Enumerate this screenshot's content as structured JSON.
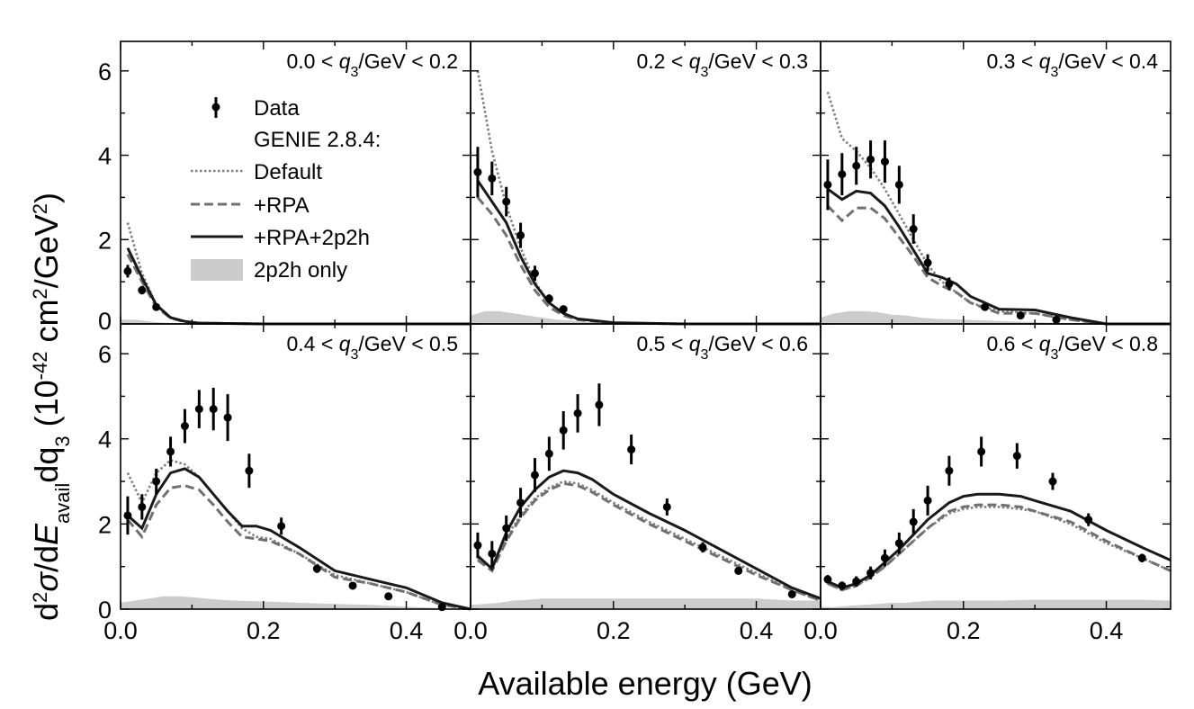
{
  "chart_data": {
    "type": "line",
    "xlabel": "Available energy (GeV)",
    "ylabel": {
      "main_prefix": "d",
      "sup1": "2",
      "sigma": "σ",
      "mid": "/d",
      "E": "E",
      "sub_avail": "avail",
      "dq": "dq",
      "sub_3": "3",
      "units_open": " (10",
      "units_exp": "-42",
      "units_mid": " cm",
      "units_sup2": "2",
      "units_end": "/GeV",
      "units_sup2b": "2",
      "units_close": ")"
    },
    "xlim": [
      0.0,
      0.49
    ],
    "ylim": [
      0,
      6.7
    ],
    "xticks": [
      0.0,
      0.2,
      0.4
    ],
    "xtick_labels": [
      "0.0",
      "0.2",
      "0.4"
    ],
    "yticks": [
      0,
      2,
      4,
      6
    ],
    "ytick_labels": [
      "0",
      "2",
      "4",
      "6"
    ],
    "legend": {
      "placement": "top-left panel",
      "data": "Data",
      "genie_header": "GENIE 2.8.4:",
      "default": "Default",
      "rpa": "+RPA",
      "rpa2p2h": "+RPA+2p2h",
      "only2p2h": "2p2h only"
    },
    "series_styles": {
      "default": "dotted gray",
      "rpa": "dashed gray",
      "rpa2p2h": "solid black",
      "only2p2h": "filled light gray"
    },
    "panels": [
      {
        "title": "0.0 < q3/GeV < 0.2",
        "t_lo": "0.0 < ",
        "t_q": "q",
        "t_sub": "3",
        "t_hi": "/GeV < 0.2",
        "data_x": [
          0.01,
          0.03,
          0.05
        ],
        "data_y": [
          1.25,
          0.8,
          0.4
        ],
        "data_err": [
          0.15,
          0.1,
          0.08
        ],
        "default_x": [
          0.01,
          0.03,
          0.05,
          0.07,
          0.09,
          0.11,
          0.15,
          0.2,
          0.3,
          0.49
        ],
        "default_y": [
          2.4,
          1.2,
          0.45,
          0.15,
          0.06,
          0.03,
          0.01,
          0.0,
          0.0,
          0.0
        ],
        "rpa_x": [
          0.01,
          0.03,
          0.05,
          0.07,
          0.09,
          0.11,
          0.15,
          0.2,
          0.3,
          0.49
        ],
        "rpa_y": [
          1.65,
          1.0,
          0.4,
          0.14,
          0.05,
          0.02,
          0.01,
          0.0,
          0.0,
          0.0
        ],
        "full_x": [
          0.01,
          0.03,
          0.05,
          0.07,
          0.09,
          0.11,
          0.15,
          0.2,
          0.3,
          0.49
        ],
        "full_y": [
          1.8,
          1.1,
          0.45,
          0.15,
          0.06,
          0.02,
          0.01,
          0.0,
          0.0,
          0.0
        ],
        "only_x": [
          0.0,
          0.02,
          0.04,
          0.06,
          0.08,
          0.1,
          0.49
        ],
        "only_y": [
          0.1,
          0.1,
          0.06,
          0.03,
          0.01,
          0.0,
          0.0
        ]
      },
      {
        "title": "0.2 < q3/GeV < 0.3",
        "t_lo": "0.2 < ",
        "t_q": "q",
        "t_sub": "3",
        "t_hi": "/GeV < 0.3",
        "data_x": [
          0.01,
          0.03,
          0.05,
          0.07,
          0.09,
          0.11,
          0.13
        ],
        "data_y": [
          3.6,
          3.45,
          2.9,
          2.1,
          1.2,
          0.6,
          0.35
        ],
        "data_err": [
          0.6,
          0.4,
          0.35,
          0.3,
          0.18,
          0.1,
          0.08
        ],
        "default_x": [
          0.01,
          0.03,
          0.05,
          0.07,
          0.09,
          0.11,
          0.13,
          0.15,
          0.2,
          0.3,
          0.49
        ],
        "default_y": [
          6.0,
          4.1,
          2.8,
          1.8,
          1.0,
          0.5,
          0.25,
          0.12,
          0.02,
          0.0,
          0.0
        ],
        "rpa_x": [
          0.01,
          0.03,
          0.05,
          0.07,
          0.09,
          0.11,
          0.13,
          0.15,
          0.2,
          0.3,
          0.49
        ],
        "rpa_y": [
          3.0,
          2.6,
          2.1,
          1.4,
          0.8,
          0.4,
          0.2,
          0.1,
          0.02,
          0.0,
          0.0
        ],
        "full_x": [
          0.01,
          0.03,
          0.05,
          0.07,
          0.09,
          0.11,
          0.13,
          0.15,
          0.2,
          0.3,
          0.49
        ],
        "full_y": [
          3.4,
          2.9,
          2.4,
          1.6,
          0.95,
          0.5,
          0.25,
          0.12,
          0.03,
          0.0,
          0.0
        ],
        "only_x": [
          0.0,
          0.02,
          0.04,
          0.06,
          0.08,
          0.1,
          0.12,
          0.14,
          0.16,
          0.18,
          0.2,
          0.22,
          0.49
        ],
        "only_y": [
          0.2,
          0.3,
          0.3,
          0.25,
          0.2,
          0.15,
          0.1,
          0.08,
          0.05,
          0.03,
          0.01,
          0.0,
          0.0
        ]
      },
      {
        "title": "0.3 < q3/GeV < 0.4",
        "t_lo": "0.3 < ",
        "t_q": "q",
        "t_sub": "3",
        "t_hi": "/GeV < 0.4",
        "data_x": [
          0.01,
          0.03,
          0.05,
          0.07,
          0.09,
          0.11,
          0.13,
          0.15,
          0.18,
          0.23,
          0.28,
          0.33
        ],
        "data_y": [
          3.3,
          3.55,
          3.75,
          3.9,
          3.85,
          3.3,
          2.25,
          1.45,
          0.95,
          0.4,
          0.2,
          0.1
        ],
        "data_err": [
          0.6,
          0.5,
          0.45,
          0.45,
          0.5,
          0.45,
          0.35,
          0.2,
          0.15,
          0.08,
          0.06,
          0.05
        ],
        "default_x": [
          0.01,
          0.03,
          0.05,
          0.07,
          0.09,
          0.11,
          0.13,
          0.15,
          0.17,
          0.19,
          0.21,
          0.25,
          0.3,
          0.35,
          0.4,
          0.49
        ],
        "default_y": [
          5.5,
          4.4,
          4.1,
          3.7,
          3.2,
          2.6,
          2.0,
          1.4,
          1.0,
          0.75,
          0.5,
          0.3,
          0.25,
          0.1,
          0.0,
          0.0
        ],
        "rpa_x": [
          0.01,
          0.03,
          0.05,
          0.07,
          0.09,
          0.11,
          0.13,
          0.15,
          0.17,
          0.19,
          0.21,
          0.25,
          0.3,
          0.35,
          0.4,
          0.49
        ],
        "rpa_y": [
          2.8,
          2.45,
          2.75,
          2.75,
          2.5,
          2.05,
          1.6,
          1.1,
          0.9,
          0.75,
          0.5,
          0.25,
          0.25,
          0.1,
          0.0,
          0.0
        ],
        "full_x": [
          0.01,
          0.03,
          0.05,
          0.07,
          0.09,
          0.11,
          0.13,
          0.15,
          0.17,
          0.19,
          0.21,
          0.25,
          0.3,
          0.35,
          0.4,
          0.49
        ],
        "full_y": [
          3.2,
          2.95,
          3.15,
          3.1,
          2.8,
          2.3,
          1.75,
          1.2,
          1.1,
          0.95,
          0.65,
          0.35,
          0.33,
          0.15,
          0.0,
          0.0
        ],
        "only_x": [
          0.0,
          0.02,
          0.04,
          0.06,
          0.08,
          0.1,
          0.12,
          0.14,
          0.16,
          0.2,
          0.25,
          0.3,
          0.35,
          0.4,
          0.49
        ],
        "only_y": [
          0.15,
          0.25,
          0.3,
          0.3,
          0.28,
          0.22,
          0.2,
          0.15,
          0.12,
          0.1,
          0.07,
          0.04,
          0.02,
          0.0,
          0.0
        ]
      },
      {
        "title": "0.4 < q3/GeV < 0.5",
        "t_lo": "0.4 < ",
        "t_q": "q",
        "t_sub": "3",
        "t_hi": "/GeV < 0.5",
        "data_x": [
          0.01,
          0.03,
          0.05,
          0.07,
          0.09,
          0.11,
          0.13,
          0.15,
          0.18,
          0.225,
          0.275,
          0.325,
          0.375,
          0.45
        ],
        "data_y": [
          2.2,
          2.4,
          3.0,
          3.7,
          4.3,
          4.7,
          4.7,
          4.5,
          3.25,
          1.95,
          0.95,
          0.55,
          0.3,
          0.05
        ],
        "data_err": [
          0.45,
          0.3,
          0.3,
          0.35,
          0.4,
          0.45,
          0.5,
          0.55,
          0.4,
          0.2,
          0.1,
          0.07,
          0.05,
          0.04
        ],
        "default_x": [
          0.01,
          0.03,
          0.05,
          0.07,
          0.09,
          0.11,
          0.13,
          0.15,
          0.17,
          0.19,
          0.21,
          0.25,
          0.3,
          0.35,
          0.4,
          0.45,
          0.49
        ],
        "default_y": [
          3.2,
          2.5,
          3.2,
          3.5,
          3.4,
          3.1,
          2.7,
          2.3,
          1.9,
          1.7,
          1.65,
          1.3,
          0.8,
          0.6,
          0.4,
          0.1,
          0.0
        ],
        "rpa_x": [
          0.01,
          0.03,
          0.05,
          0.07,
          0.09,
          0.11,
          0.13,
          0.15,
          0.17,
          0.19,
          0.21,
          0.25,
          0.3,
          0.35,
          0.4,
          0.45,
          0.49
        ],
        "rpa_y": [
          2.1,
          1.7,
          2.45,
          2.85,
          2.9,
          2.8,
          2.45,
          2.05,
          1.7,
          1.65,
          1.6,
          1.3,
          0.75,
          0.6,
          0.4,
          0.1,
          0.0
        ],
        "full_x": [
          0.01,
          0.03,
          0.05,
          0.07,
          0.09,
          0.11,
          0.13,
          0.15,
          0.17,
          0.19,
          0.21,
          0.25,
          0.3,
          0.35,
          0.4,
          0.45,
          0.49
        ],
        "full_y": [
          2.2,
          1.9,
          2.7,
          3.2,
          3.3,
          3.1,
          2.7,
          2.3,
          1.95,
          1.95,
          1.85,
          1.45,
          0.9,
          0.7,
          0.5,
          0.15,
          0.0
        ],
        "only_x": [
          0.0,
          0.02,
          0.04,
          0.06,
          0.08,
          0.1,
          0.12,
          0.14,
          0.16,
          0.2,
          0.25,
          0.3,
          0.35,
          0.4,
          0.45,
          0.49
        ],
        "only_y": [
          0.15,
          0.2,
          0.25,
          0.3,
          0.3,
          0.28,
          0.25,
          0.22,
          0.2,
          0.18,
          0.15,
          0.12,
          0.1,
          0.06,
          0.02,
          0.0
        ]
      },
      {
        "title": "0.5 < q3/GeV < 0.6",
        "t_lo": "0.5 < ",
        "t_q": "q",
        "t_sub": "3",
        "t_hi": "/GeV < 0.6",
        "data_x": [
          0.01,
          0.03,
          0.05,
          0.07,
          0.09,
          0.11,
          0.13,
          0.15,
          0.18,
          0.225,
          0.275,
          0.325,
          0.375,
          0.45
        ],
        "data_y": [
          1.5,
          1.3,
          1.9,
          2.5,
          3.15,
          3.65,
          4.2,
          4.6,
          4.8,
          3.75,
          2.4,
          1.45,
          0.9,
          0.35
        ],
        "data_err": [
          0.3,
          0.3,
          0.3,
          0.35,
          0.4,
          0.4,
          0.45,
          0.45,
          0.5,
          0.35,
          0.2,
          0.12,
          0.08,
          0.05
        ],
        "default_x": [
          0.01,
          0.03,
          0.05,
          0.07,
          0.09,
          0.11,
          0.13,
          0.15,
          0.17,
          0.2,
          0.25,
          0.3,
          0.35,
          0.4,
          0.45,
          0.49
        ],
        "default_y": [
          1.2,
          0.95,
          1.7,
          2.2,
          2.6,
          2.85,
          3.0,
          2.95,
          2.8,
          2.5,
          2.05,
          1.65,
          1.25,
          0.85,
          0.45,
          0.2
        ],
        "rpa_x": [
          0.01,
          0.03,
          0.05,
          0.07,
          0.09,
          0.11,
          0.13,
          0.15,
          0.17,
          0.2,
          0.25,
          0.3,
          0.35,
          0.4,
          0.45,
          0.49
        ],
        "rpa_y": [
          1.15,
          0.9,
          1.6,
          2.15,
          2.55,
          2.8,
          2.95,
          2.9,
          2.75,
          2.45,
          2.0,
          1.6,
          1.2,
          0.8,
          0.45,
          0.2
        ],
        "full_x": [
          0.01,
          0.03,
          0.05,
          0.07,
          0.09,
          0.11,
          0.13,
          0.15,
          0.17,
          0.2,
          0.25,
          0.3,
          0.35,
          0.4,
          0.45,
          0.49
        ],
        "full_y": [
          1.25,
          0.95,
          1.8,
          2.4,
          2.8,
          3.1,
          3.25,
          3.2,
          3.05,
          2.7,
          2.25,
          1.85,
          1.4,
          0.95,
          0.5,
          0.25
        ],
        "only_x": [
          0.0,
          0.02,
          0.04,
          0.06,
          0.08,
          0.1,
          0.12,
          0.14,
          0.16,
          0.2,
          0.25,
          0.3,
          0.35,
          0.4,
          0.45,
          0.49
        ],
        "only_y": [
          0.1,
          0.12,
          0.15,
          0.2,
          0.22,
          0.25,
          0.25,
          0.25,
          0.25,
          0.25,
          0.25,
          0.25,
          0.25,
          0.25,
          0.2,
          0.2
        ]
      },
      {
        "title": "0.6 < q3/GeV < 0.8",
        "t_lo": "0.6 < ",
        "t_q": "q",
        "t_sub": "3",
        "t_hi": "/GeV < 0.8",
        "data_x": [
          0.01,
          0.03,
          0.05,
          0.07,
          0.09,
          0.11,
          0.13,
          0.15,
          0.18,
          0.225,
          0.275,
          0.325,
          0.375,
          0.45
        ],
        "data_y": [
          0.7,
          0.55,
          0.65,
          0.85,
          1.2,
          1.55,
          2.05,
          2.55,
          3.25,
          3.7,
          3.6,
          3.0,
          2.1,
          1.2
        ],
        "data_err": [
          0.1,
          0.1,
          0.12,
          0.15,
          0.2,
          0.25,
          0.3,
          0.35,
          0.35,
          0.35,
          0.3,
          0.2,
          0.15,
          0.1
        ],
        "default_x": [
          0.01,
          0.03,
          0.05,
          0.07,
          0.09,
          0.11,
          0.13,
          0.15,
          0.18,
          0.2,
          0.22,
          0.25,
          0.28,
          0.3,
          0.35,
          0.4,
          0.45,
          0.49
        ],
        "default_y": [
          0.6,
          0.45,
          0.55,
          0.75,
          1.0,
          1.3,
          1.6,
          1.9,
          2.25,
          2.35,
          2.4,
          2.4,
          2.35,
          2.3,
          2.0,
          1.55,
          1.2,
          0.9
        ],
        "rpa_x": [
          0.01,
          0.03,
          0.05,
          0.07,
          0.09,
          0.11,
          0.13,
          0.15,
          0.18,
          0.2,
          0.22,
          0.25,
          0.28,
          0.3,
          0.35,
          0.4,
          0.45,
          0.49
        ],
        "rpa_y": [
          0.6,
          0.45,
          0.55,
          0.75,
          1.0,
          1.3,
          1.6,
          1.9,
          2.3,
          2.4,
          2.45,
          2.45,
          2.4,
          2.3,
          2.05,
          1.6,
          1.2,
          0.9
        ],
        "full_x": [
          0.01,
          0.03,
          0.05,
          0.07,
          0.09,
          0.11,
          0.13,
          0.15,
          0.18,
          0.2,
          0.22,
          0.25,
          0.28,
          0.3,
          0.35,
          0.4,
          0.45,
          0.49
        ],
        "full_y": [
          0.65,
          0.5,
          0.6,
          0.8,
          1.1,
          1.4,
          1.75,
          2.1,
          2.5,
          2.65,
          2.7,
          2.7,
          2.65,
          2.55,
          2.3,
          1.85,
          1.45,
          1.15
        ],
        "only_x": [
          0.0,
          0.02,
          0.04,
          0.06,
          0.08,
          0.1,
          0.12,
          0.14,
          0.16,
          0.2,
          0.25,
          0.3,
          0.35,
          0.4,
          0.45,
          0.49
        ],
        "only_y": [
          0.05,
          0.05,
          0.08,
          0.1,
          0.12,
          0.15,
          0.15,
          0.18,
          0.2,
          0.2,
          0.2,
          0.22,
          0.22,
          0.22,
          0.22,
          0.2
        ]
      }
    ]
  }
}
